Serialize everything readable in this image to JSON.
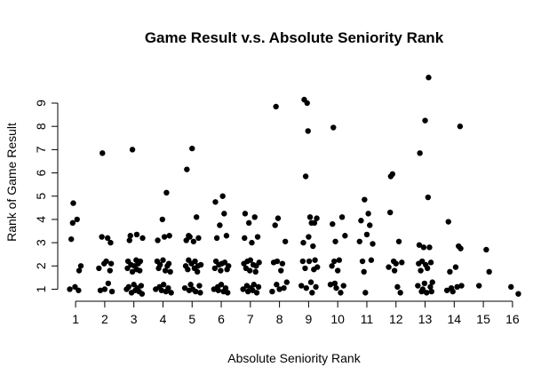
{
  "chart_data": {
    "type": "scatter",
    "title": "Game Result v.s. Absolute Seniority Rank",
    "xlabel": "Absolute Seniority Rank",
    "ylabel": "Rank of Game Result",
    "x_ticks": [
      "1",
      "2",
      "3",
      "4",
      "5",
      "6",
      "7",
      "8",
      "9",
      "10",
      "11",
      "12",
      "13",
      "14",
      "15",
      "16"
    ],
    "y_ticks": [
      "1",
      "2",
      "3",
      "4",
      "5",
      "6",
      "7",
      "8",
      "9"
    ],
    "xlim": [
      0.6,
      16.4
    ],
    "ylim": [
      0.75,
      10.3
    ],
    "jittered": true,
    "marker": "filled-circle",
    "color": "#000000",
    "points": [
      [
        0.8,
        1.0
      ],
      [
        0.85,
        3.15
      ],
      [
        0.9,
        3.85
      ],
      [
        0.92,
        4.7
      ],
      [
        0.98,
        1.1
      ],
      [
        1.05,
        4.0
      ],
      [
        1.1,
        0.95
      ],
      [
        1.12,
        1.8
      ],
      [
        1.18,
        2.0
      ],
      [
        1.8,
        1.9
      ],
      [
        1.85,
        0.95
      ],
      [
        1.9,
        3.25
      ],
      [
        1.92,
        6.85
      ],
      [
        1.98,
        2.1
      ],
      [
        2.0,
        1.0
      ],
      [
        2.05,
        2.2
      ],
      [
        2.1,
        3.2
      ],
      [
        2.12,
        1.25
      ],
      [
        2.18,
        1.8
      ],
      [
        2.2,
        3.0
      ],
      [
        2.22,
        2.1
      ],
      [
        2.25,
        0.9
      ],
      [
        2.75,
        1.0
      ],
      [
        2.78,
        1.9
      ],
      [
        2.8,
        2.2
      ],
      [
        2.82,
        1.1
      ],
      [
        2.85,
        3.1
      ],
      [
        2.88,
        3.3
      ],
      [
        2.9,
        2.05
      ],
      [
        2.92,
        0.85
      ],
      [
        2.95,
        1.75
      ],
      [
        2.95,
        7.0
      ],
      [
        3.0,
        1.2
      ],
      [
        3.02,
        2.0
      ],
      [
        3.05,
        0.95
      ],
      [
        3.08,
        2.25
      ],
      [
        3.1,
        1.85
      ],
      [
        3.12,
        1.05
      ],
      [
        3.15,
        2.1
      ],
      [
        3.18,
        0.9
      ],
      [
        3.2,
        1.8
      ],
      [
        3.22,
        2.2
      ],
      [
        3.25,
        1.15
      ],
      [
        3.28,
        0.8
      ],
      [
        3.3,
        3.2
      ],
      [
        3.1,
        3.35
      ],
      [
        3.75,
        1.0
      ],
      [
        3.8,
        2.2
      ],
      [
        3.82,
        3.1
      ],
      [
        3.85,
        1.9
      ],
      [
        3.88,
        1.1
      ],
      [
        3.9,
        2.05
      ],
      [
        3.95,
        0.95
      ],
      [
        3.98,
        4.0
      ],
      [
        4.0,
        2.25
      ],
      [
        4.02,
        1.2
      ],
      [
        4.05,
        3.25
      ],
      [
        4.08,
        1.8
      ],
      [
        4.1,
        0.9
      ],
      [
        4.12,
        5.15
      ],
      [
        4.15,
        2.0
      ],
      [
        4.18,
        1.05
      ],
      [
        4.2,
        2.1
      ],
      [
        4.22,
        3.3
      ],
      [
        4.25,
        1.75
      ],
      [
        4.28,
        0.85
      ],
      [
        4.75,
        1.05
      ],
      [
        4.78,
        2.0
      ],
      [
        4.8,
        3.1
      ],
      [
        4.82,
        6.15
      ],
      [
        4.85,
        1.85
      ],
      [
        4.88,
        2.25
      ],
      [
        4.9,
        0.95
      ],
      [
        4.92,
        3.25
      ],
      [
        4.95,
        1.2
      ],
      [
        4.98,
        2.1
      ],
      [
        5.0,
        7.05
      ],
      [
        5.02,
        1.0
      ],
      [
        5.05,
        3.05
      ],
      [
        5.08,
        1.9
      ],
      [
        5.1,
        2.2
      ],
      [
        5.12,
        0.9
      ],
      [
        5.15,
        4.1
      ],
      [
        5.18,
        1.75
      ],
      [
        5.2,
        2.0
      ],
      [
        5.22,
        3.2
      ],
      [
        5.25,
        1.15
      ],
      [
        5.28,
        0.85
      ],
      [
        5.3,
        2.05
      ],
      [
        4.88,
        3.3
      ],
      [
        5.75,
        1.0
      ],
      [
        5.78,
        1.9
      ],
      [
        5.8,
        4.75
      ],
      [
        5.82,
        2.2
      ],
      [
        5.85,
        3.2
      ],
      [
        5.88,
        1.1
      ],
      [
        5.9,
        0.95
      ],
      [
        5.92,
        2.05
      ],
      [
        5.95,
        3.75
      ],
      [
        5.98,
        1.8
      ],
      [
        6.0,
        1.2
      ],
      [
        6.02,
        2.1
      ],
      [
        6.05,
        5.0
      ],
      [
        6.08,
        0.9
      ],
      [
        6.1,
        4.25
      ],
      [
        6.12,
        2.15
      ],
      [
        6.15,
        1.05
      ],
      [
        6.18,
        3.3
      ],
      [
        6.2,
        1.85
      ],
      [
        6.22,
        0.85
      ],
      [
        6.25,
        2.0
      ],
      [
        6.75,
        1.0
      ],
      [
        6.78,
        2.1
      ],
      [
        6.8,
        3.2
      ],
      [
        6.82,
        4.25
      ],
      [
        6.85,
        1.9
      ],
      [
        6.88,
        1.15
      ],
      [
        6.9,
        2.2
      ],
      [
        6.92,
        0.9
      ],
      [
        6.95,
        3.85
      ],
      [
        6.98,
        1.8
      ],
      [
        7.0,
        2.25
      ],
      [
        7.02,
        1.05
      ],
      [
        7.05,
        3.0
      ],
      [
        7.08,
        0.95
      ],
      [
        7.1,
        2.05
      ],
      [
        7.12,
        1.2
      ],
      [
        7.15,
        4.1
      ],
      [
        7.18,
        1.75
      ],
      [
        7.2,
        2.0
      ],
      [
        7.22,
        0.85
      ],
      [
        7.25,
        3.25
      ],
      [
        7.28,
        1.1
      ],
      [
        7.3,
        2.15
      ],
      [
        7.75,
        0.9
      ],
      [
        7.8,
        2.15
      ],
      [
        7.85,
        3.75
      ],
      [
        7.88,
        8.85
      ],
      [
        7.9,
        1.2
      ],
      [
        7.92,
        2.2
      ],
      [
        7.95,
        4.05
      ],
      [
        8.0,
        1.0
      ],
      [
        8.05,
        1.8
      ],
      [
        8.1,
        2.1
      ],
      [
        8.15,
        1.05
      ],
      [
        8.2,
        3.05
      ],
      [
        8.25,
        1.3
      ],
      [
        8.75,
        1.15
      ],
      [
        8.8,
        2.2
      ],
      [
        8.82,
        3.0
      ],
      [
        8.85,
        9.15
      ],
      [
        8.88,
        1.9
      ],
      [
        8.9,
        5.85
      ],
      [
        8.92,
        1.05
      ],
      [
        8.95,
        9.0
      ],
      [
        8.98,
        7.8
      ],
      [
        9.0,
        3.25
      ],
      [
        9.02,
        2.2
      ],
      [
        9.05,
        4.1
      ],
      [
        9.08,
        1.3
      ],
      [
        9.1,
        3.85
      ],
      [
        9.12,
        0.85
      ],
      [
        9.15,
        2.85
      ],
      [
        9.18,
        1.85
      ],
      [
        9.2,
        3.85
      ],
      [
        9.22,
        2.25
      ],
      [
        9.25,
        1.1
      ],
      [
        9.28,
        4.05
      ],
      [
        9.3,
        1.95
      ],
      [
        9.75,
        1.2
      ],
      [
        9.8,
        2.0
      ],
      [
        9.82,
        3.8
      ],
      [
        9.85,
        7.95
      ],
      [
        9.88,
        2.2
      ],
      [
        9.9,
        1.25
      ],
      [
        9.92,
        3.05
      ],
      [
        9.95,
        1.05
      ],
      [
        10.0,
        1.8
      ],
      [
        10.05,
        2.25
      ],
      [
        10.1,
        0.85
      ],
      [
        10.15,
        4.1
      ],
      [
        10.2,
        1.15
      ],
      [
        10.25,
        3.3
      ],
      [
        10.75,
        3.05
      ],
      [
        10.8,
        3.95
      ],
      [
        10.85,
        2.2
      ],
      [
        10.9,
        1.75
      ],
      [
        10.92,
        4.85
      ],
      [
        10.95,
        0.85
      ],
      [
        11.0,
        3.35
      ],
      [
        11.05,
        4.25
      ],
      [
        11.1,
        3.75
      ],
      [
        11.15,
        2.25
      ],
      [
        11.2,
        2.95
      ],
      [
        11.75,
        1.95
      ],
      [
        11.8,
        4.3
      ],
      [
        11.82,
        5.85
      ],
      [
        11.88,
        5.95
      ],
      [
        11.92,
        2.2
      ],
      [
        11.95,
        1.8
      ],
      [
        12.0,
        2.1
      ],
      [
        12.05,
        1.1
      ],
      [
        12.1,
        3.05
      ],
      [
        12.15,
        0.85
      ],
      [
        12.2,
        2.15
      ],
      [
        12.75,
        1.15
      ],
      [
        12.78,
        2.1
      ],
      [
        12.8,
        2.9
      ],
      [
        12.82,
        6.85
      ],
      [
        12.85,
        1.8
      ],
      [
        12.88,
        0.9
      ],
      [
        12.9,
        2.2
      ],
      [
        12.92,
        1.0
      ],
      [
        12.95,
        2.8
      ],
      [
        12.98,
        1.25
      ],
      [
        13.0,
        8.25
      ],
      [
        13.02,
        2.05
      ],
      [
        13.05,
        0.85
      ],
      [
        13.08,
        1.9
      ],
      [
        13.1,
        4.95
      ],
      [
        13.12,
        10.1
      ],
      [
        13.15,
        2.8
      ],
      [
        13.18,
        1.1
      ],
      [
        13.2,
        2.15
      ],
      [
        13.22,
        0.9
      ],
      [
        13.25,
        1.3
      ],
      [
        13.75,
        0.95
      ],
      [
        13.8,
        3.9
      ],
      [
        13.85,
        1.75
      ],
      [
        13.9,
        1.05
      ],
      [
        13.95,
        0.9
      ],
      [
        14.05,
        1.95
      ],
      [
        14.1,
        1.1
      ],
      [
        14.15,
        2.85
      ],
      [
        14.2,
        8.0
      ],
      [
        14.22,
        2.75
      ],
      [
        14.25,
        1.15
      ],
      [
        14.85,
        1.15
      ],
      [
        15.1,
        2.7
      ],
      [
        15.2,
        1.75
      ],
      [
        15.95,
        1.1
      ],
      [
        16.2,
        0.8
      ]
    ]
  }
}
